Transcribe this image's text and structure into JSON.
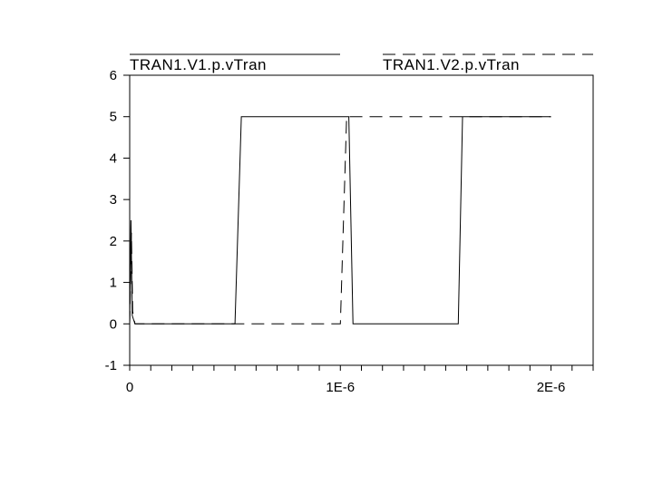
{
  "chart_data": {
    "type": "line",
    "title": "",
    "xlabel": "",
    "ylabel": "",
    "xlim": [
      0,
      2.2e-06
    ],
    "ylim": [
      -1,
      6
    ],
    "x_ticks": [
      {
        "value": 0,
        "label": "0"
      },
      {
        "value": 1e-06,
        "label": "1E-6"
      },
      {
        "value": 2e-06,
        "label": "2E-6"
      }
    ],
    "y_ticks": [
      {
        "value": -1,
        "label": "-1"
      },
      {
        "value": 0,
        "label": "0"
      },
      {
        "value": 1,
        "label": "1"
      },
      {
        "value": 2,
        "label": "2"
      },
      {
        "value": 3,
        "label": "3"
      },
      {
        "value": 4,
        "label": "4"
      },
      {
        "value": 5,
        "label": "5"
      },
      {
        "value": 6,
        "label": "6"
      }
    ],
    "grid": false,
    "legend": "top",
    "series": [
      {
        "name": "TRAN1.V1.p.vTran",
        "style": "solid",
        "color": "#000000",
        "x": [
          0,
          6e-09,
          1.2e-08,
          2.5e-08,
          5e-07,
          5.3e-07,
          1.04e-06,
          1.06e-06,
          1.56e-06,
          1.58e-06,
          2e-06
        ],
        "y": [
          0,
          2.5,
          0.2,
          0,
          0,
          5,
          5,
          0,
          0,
          5,
          5
        ]
      },
      {
        "name": "TRAN1.V2.p.vTran",
        "style": "dashed",
        "color": "#000000",
        "x": [
          0,
          8e-09,
          1.4e-08,
          2.5e-08,
          1e-06,
          1.03e-06,
          2e-06
        ],
        "y": [
          0,
          2.2,
          0.3,
          0,
          0,
          5,
          5
        ]
      }
    ]
  }
}
